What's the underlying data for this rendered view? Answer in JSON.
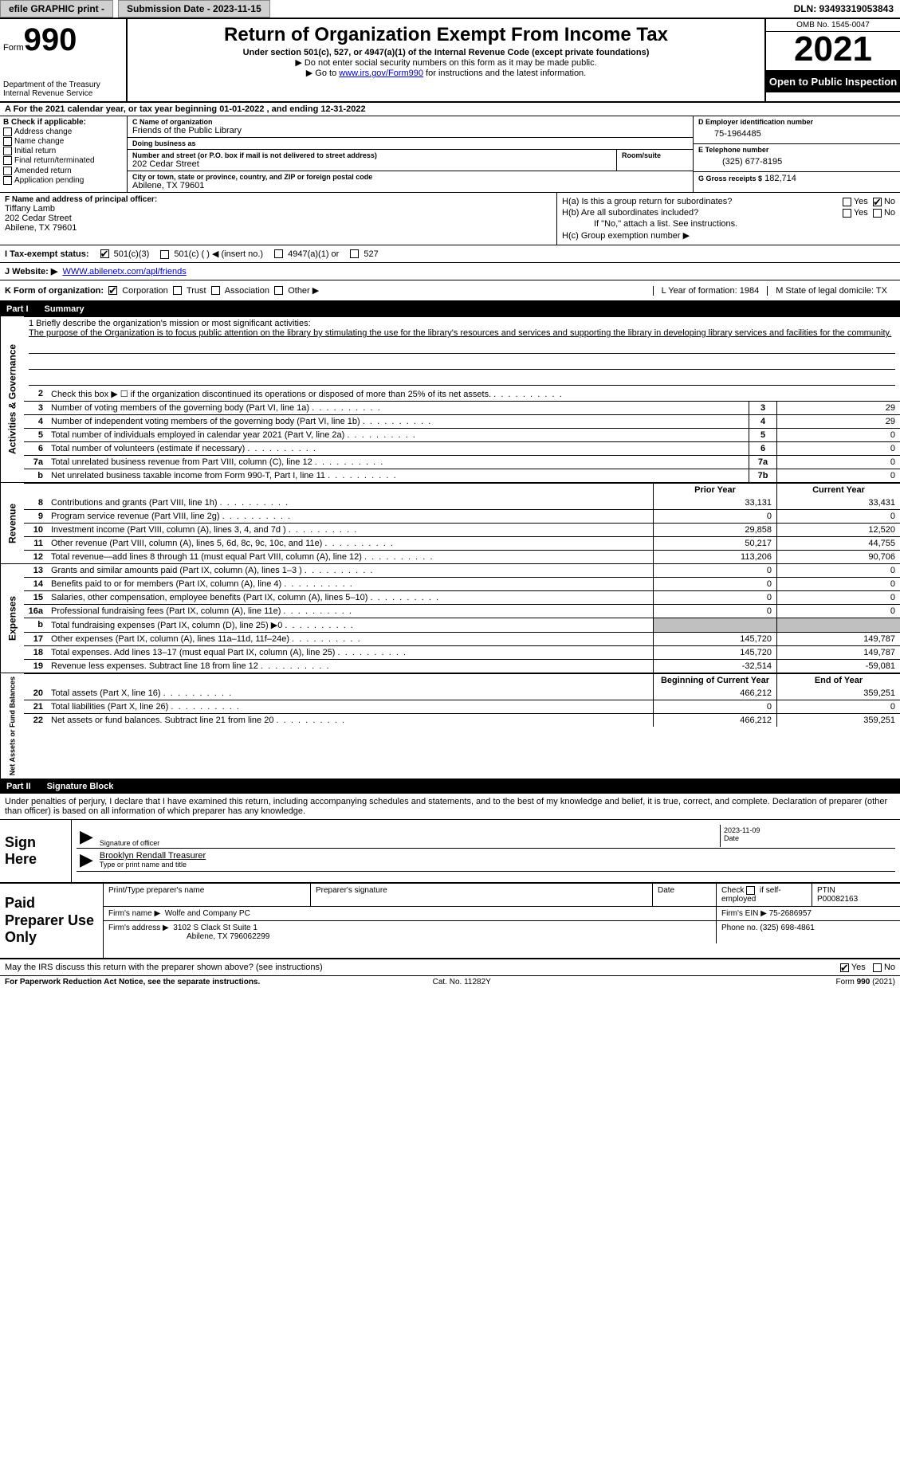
{
  "topbar": {
    "efile": "efile GRAPHIC print -",
    "submission": "Submission Date - 2023-11-15",
    "dln": "DLN: 93493319053843"
  },
  "header": {
    "form_prefix": "Form",
    "form_num": "990",
    "dept1": "Department of the Treasury",
    "dept2": "Internal Revenue Service",
    "title": "Return of Organization Exempt From Income Tax",
    "sub1": "Under section 501(c), 527, or 4947(a)(1) of the Internal Revenue Code (except private foundations)",
    "sub2": "▶ Do not enter social security numbers on this form as it may be made public.",
    "sub3_pre": "▶ Go to ",
    "sub3_link": "www.irs.gov/Form990",
    "sub3_post": " for instructions and the latest information.",
    "omb": "OMB No. 1545-0047",
    "year": "2021",
    "inspect": "Open to Public Inspection"
  },
  "period": {
    "text": "A For the 2021 calendar year, or tax year beginning 01-01-2022   , and ending 12-31-2022"
  },
  "blockB": {
    "label": "B Check if applicable:",
    "opts": [
      "Address change",
      "Name change",
      "Initial return",
      "Final return/terminated",
      "Amended return",
      "Application pending"
    ]
  },
  "org": {
    "name_lbl": "C Name of organization",
    "name": "Friends of the Public Library",
    "dba_lbl": "Doing business as",
    "dba": "",
    "street_lbl": "Number and street (or P.O. box if mail is not delivered to street address)",
    "room_lbl": "Room/suite",
    "street": "202 Cedar Street",
    "city_lbl": "City or town, state or province, country, and ZIP or foreign postal code",
    "city": "Abilene, TX  79601"
  },
  "ein": {
    "lbl": "D Employer identification number",
    "val": "75-1964485"
  },
  "phone": {
    "lbl": "E Telephone number",
    "val": "(325) 677-8195"
  },
  "gross": {
    "lbl": "G Gross receipts $",
    "val": "182,714"
  },
  "officer": {
    "lbl": "F Name and address of principal officer:",
    "name": "Tiffany Lamb",
    "addr1": "202 Cedar Street",
    "addr2": "Abilene, TX  79601"
  },
  "h": {
    "a": "H(a)  Is this a group return for subordinates?",
    "yes": "Yes",
    "no": "No",
    "b": "H(b)  Are all subordinates included?",
    "b_note": "If \"No,\" attach a list. See instructions.",
    "c": "H(c)  Group exemption number ▶"
  },
  "status": {
    "lbl": "I   Tax-exempt status:",
    "o1": "501(c)(3)",
    "o2": "501(c) (  ) ◀ (insert no.)",
    "o3": "4947(a)(1) or",
    "o4": "527"
  },
  "website": {
    "lbl": "J   Website: ▶",
    "val": "WWW.abilenetx.com/apl/friends"
  },
  "k": {
    "lbl": "K Form of organization:",
    "o1": "Corporation",
    "o2": "Trust",
    "o3": "Association",
    "o4": "Other ▶",
    "l": "L Year of formation: 1984",
    "m": "M State of legal domicile: TX"
  },
  "part1": {
    "num": "Part I",
    "title": "Summary"
  },
  "mission": {
    "lbl": "1   Briefly describe the organization's mission or most significant activities:",
    "text": "The purpose of the Organization is to focus public attention on the library by stimulating the use for the library's resources and services and supporting the library in developing library services and facilities for the community."
  },
  "lines_gov": [
    {
      "n": "2",
      "d": "Check this box ▶ ☐  if the organization discontinued its operations or disposed of more than 25% of its net assets.",
      "box": "",
      "v": ""
    },
    {
      "n": "3",
      "d": "Number of voting members of the governing body (Part VI, line 1a)",
      "box": "3",
      "v": "29"
    },
    {
      "n": "4",
      "d": "Number of independent voting members of the governing body (Part VI, line 1b)",
      "box": "4",
      "v": "29"
    },
    {
      "n": "5",
      "d": "Total number of individuals employed in calendar year 2021 (Part V, line 2a)",
      "box": "5",
      "v": "0"
    },
    {
      "n": "6",
      "d": "Total number of volunteers (estimate if necessary)",
      "box": "6",
      "v": "0"
    },
    {
      "n": "7a",
      "d": "Total unrelated business revenue from Part VIII, column (C), line 12",
      "box": "7a",
      "v": "0"
    },
    {
      "n": "b",
      "d": "Net unrelated business taxable income from Form 990-T, Part I, line 11",
      "box": "7b",
      "v": "0"
    }
  ],
  "colhdr": {
    "h1": "Prior Year",
    "h2": "Current Year"
  },
  "lines_rev": [
    {
      "n": "8",
      "d": "Contributions and grants (Part VIII, line 1h)",
      "v1": "33,131",
      "v2": "33,431"
    },
    {
      "n": "9",
      "d": "Program service revenue (Part VIII, line 2g)",
      "v1": "0",
      "v2": "0"
    },
    {
      "n": "10",
      "d": "Investment income (Part VIII, column (A), lines 3, 4, and 7d )",
      "v1": "29,858",
      "v2": "12,520"
    },
    {
      "n": "11",
      "d": "Other revenue (Part VIII, column (A), lines 5, 6d, 8c, 9c, 10c, and 11e)",
      "v1": "50,217",
      "v2": "44,755"
    },
    {
      "n": "12",
      "d": "Total revenue—add lines 8 through 11 (must equal Part VIII, column (A), line 12)",
      "v1": "113,206",
      "v2": "90,706"
    }
  ],
  "lines_exp": [
    {
      "n": "13",
      "d": "Grants and similar amounts paid (Part IX, column (A), lines 1–3 )",
      "v1": "0",
      "v2": "0"
    },
    {
      "n": "14",
      "d": "Benefits paid to or for members (Part IX, column (A), line 4)",
      "v1": "0",
      "v2": "0"
    },
    {
      "n": "15",
      "d": "Salaries, other compensation, employee benefits (Part IX, column (A), lines 5–10)",
      "v1": "0",
      "v2": "0"
    },
    {
      "n": "16a",
      "d": "Professional fundraising fees (Part IX, column (A), line 11e)",
      "v1": "0",
      "v2": "0"
    },
    {
      "n": "b",
      "d": "Total fundraising expenses (Part IX, column (D), line 25) ▶0",
      "v1": "__shade__",
      "v2": "__shade__"
    },
    {
      "n": "17",
      "d": "Other expenses (Part IX, column (A), lines 11a–11d, 11f–24e)",
      "v1": "145,720",
      "v2": "149,787"
    },
    {
      "n": "18",
      "d": "Total expenses. Add lines 13–17 (must equal Part IX, column (A), line 25)",
      "v1": "145,720",
      "v2": "149,787"
    },
    {
      "n": "19",
      "d": "Revenue less expenses. Subtract line 18 from line 12",
      "v1": "-32,514",
      "v2": "-59,081"
    }
  ],
  "colhdr2": {
    "h1": "Beginning of Current Year",
    "h2": "End of Year"
  },
  "lines_net": [
    {
      "n": "20",
      "d": "Total assets (Part X, line 16)",
      "v1": "466,212",
      "v2": "359,251"
    },
    {
      "n": "21",
      "d": "Total liabilities (Part X, line 26)",
      "v1": "0",
      "v2": "0"
    },
    {
      "n": "22",
      "d": "Net assets or fund balances. Subtract line 21 from line 20",
      "v1": "466,212",
      "v2": "359,251"
    }
  ],
  "sidelabels": {
    "g": "Activities & Governance",
    "r": "Revenue",
    "e": "Expenses",
    "n": "Net Assets or Fund Balances"
  },
  "part2": {
    "num": "Part II",
    "title": "Signature Block"
  },
  "sig_intro": "Under penalties of perjury, I declare that I have examined this return, including accompanying schedules and statements, and to the best of my knowledge and belief, it is true, correct, and complete. Declaration of preparer (other than officer) is based on all information of which preparer has any knowledge.",
  "sign": {
    "left": "Sign Here",
    "sig_lbl": "Signature of officer",
    "date": "2023-11-09",
    "date_lbl": "Date",
    "name": "Brooklyn Rendall  Treasurer",
    "name_lbl": "Type or print name and title"
  },
  "prep": {
    "left": "Paid Preparer Use Only",
    "h1": "Print/Type preparer's name",
    "h2": "Preparer's signature",
    "h3": "Date",
    "h4_a": "Check",
    "h4_b": "if self-employed",
    "h5": "PTIN",
    "ptin": "P00082163",
    "firm_lbl": "Firm's name    ▶",
    "firm": "Wolfe and Company PC",
    "ein_lbl": "Firm's EIN ▶",
    "ein": "75-2686957",
    "addr_lbl": "Firm's address ▶",
    "addr1": "3102 S Clack St Suite 1",
    "addr2": "Abilene, TX  796062299",
    "phone_lbl": "Phone no.",
    "phone": "(325) 698-4861"
  },
  "discuss": {
    "text": "May the IRS discuss this return with the preparer shown above? (see instructions)",
    "yes": "Yes",
    "no": "No"
  },
  "footer": {
    "l": "For Paperwork Reduction Act Notice, see the separate instructions.",
    "m": "Cat. No. 11282Y",
    "r": "Form 990 (2021)"
  }
}
